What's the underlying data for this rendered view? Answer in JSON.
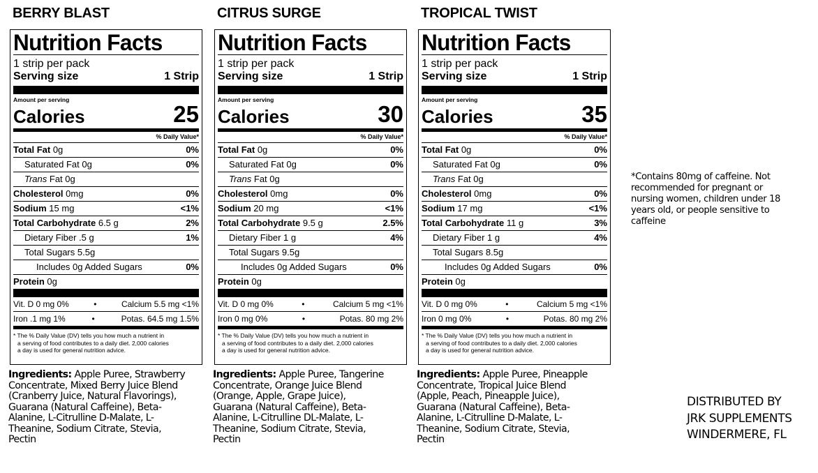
{
  "panels": [
    {
      "flavor": "BERRY BLAST",
      "title": "Nutrition Facts",
      "servings": "1 strip per pack",
      "serving_size_label": "Serving size",
      "serving_size": "1 Strip",
      "amount_per_serving": "Amount per serving",
      "calories_label": "Calories",
      "calories": "25",
      "dv_header": "% Daily Value*",
      "total_fat_label": "Total Fat",
      "total_fat_amt": "0g",
      "total_fat_pct": "0%",
      "sat_fat": "Saturated Fat 0g",
      "sat_fat_pct": "0%",
      "trans_fat_label": "Trans",
      "trans_fat_rest": "Fat 0g",
      "cholesterol_label": "Cholesterol",
      "cholesterol_amt": "0mg",
      "cholesterol_pct": "0%",
      "sodium_label": "Sodium",
      "sodium_amt": "15 mg",
      "sodium_pct": "<1%",
      "carb_label": "Total Carbohydrate",
      "carb_amt": "6.5 g",
      "carb_pct": "2%",
      "fiber": "Dietary Fiber .5 g",
      "fiber_pct": "1%",
      "sugars": "Total Sugars 5.5g",
      "added_sugars": "Includes 0g Added Sugars",
      "added_sugars_pct": "0%",
      "protein_label": "Protein",
      "protein_amt": "0g",
      "vitd": "Vit. D 0 mg 0%",
      "calcium": "Calcium 5.5 mg <1%",
      "iron": "Iron .1 mg 1%",
      "potas": "Potas. 64.5 mg 1.5%",
      "dot": "•",
      "footnote_1": "* The % Daily Value (DV) tells you how much a nutrient in",
      "footnote_2": "a serving of food contributes to a daily diet. 2,000 calories",
      "footnote_3": "a day is used for general nutrition advice.",
      "ingredients_head": "Ingredients:",
      "ingredients_lines": [
        "Apple Puree, Strawberry",
        "Concentrate, Mixed Berry Juice Blend",
        "(Cranberry Juice, Natural Flavorings),",
        "Guarana (Natural Caffeine), Beta-",
        "Alanine, L-Citrulline D-Malate, L-",
        "Theanine, Sodium Citrate, Stevia,",
        "Pectin"
      ]
    },
    {
      "flavor": "CITRUS SURGE",
      "title": "Nutrition Facts",
      "servings": "1 strip per pack",
      "serving_size_label": "Serving size",
      "serving_size": "1 Strip",
      "amount_per_serving": "Amount per serving",
      "calories_label": "Calories",
      "calories": "30",
      "dv_header": "% Daily Value*",
      "total_fat_label": "Total Fat",
      "total_fat_amt": "0g",
      "total_fat_pct": "0%",
      "sat_fat": "Saturated Fat 0g",
      "sat_fat_pct": "0%",
      "trans_fat_label": "Trans",
      "trans_fat_rest": "Fat 0g",
      "cholesterol_label": "Cholesterol",
      "cholesterol_amt": "0mg",
      "cholesterol_pct": "0%",
      "sodium_label": "Sodium",
      "sodium_amt": "20 mg",
      "sodium_pct": "<1%",
      "carb_label": "Total Carbohydrate",
      "carb_amt": "9.5 g",
      "carb_pct": "2.5%",
      "fiber": "Dietary Fiber 1 g",
      "fiber_pct": "4%",
      "sugars": "Total Sugars 9.5g",
      "added_sugars": "Includes 0g Added Sugars",
      "added_sugars_pct": "0%",
      "protein_label": "Protein",
      "protein_amt": "0g",
      "vitd": "Vit. D 0 mg 0%",
      "calcium": "Calcium 5 mg <1%",
      "iron": "Iron 0 mg 0%",
      "potas": "Potas. 80 mg 2%",
      "dot": "•",
      "footnote_1": "* The % Daily Value (DV) tells you how much a nutrient in",
      "footnote_2": "a serving of food contributes to a daily diet. 2,000 calories",
      "footnote_3": "a day is used for general nutrition advice.",
      "ingredients_head": "Ingredients:",
      "ingredients_lines": [
        "Apple Puree, Tangerine",
        "Concentrate, Orange Juice Blend",
        "(Orange, Apple, Grape Juice),",
        "Guarana (Natural Caffeine), Beta-",
        "Alanine, L-Citrulline DL-Malate, L-",
        "Theanine, Sodium Citrate, Stevia,",
        "Pectin"
      ]
    },
    {
      "flavor": "TROPICAL TWIST",
      "title": "Nutrition Facts",
      "servings": "1 strip per pack",
      "serving_size_label": "Serving size",
      "serving_size": "1 Strip",
      "amount_per_serving": "Amount per serving",
      "calories_label": "Calories",
      "calories": "35",
      "dv_header": "% Daily Value*",
      "total_fat_label": "Total Fat",
      "total_fat_amt": "0g",
      "total_fat_pct": "0%",
      "sat_fat": "Saturated Fat 0g",
      "sat_fat_pct": "0%",
      "trans_fat_label": "Trans",
      "trans_fat_rest": "Fat 0g",
      "cholesterol_label": "Cholesterol",
      "cholesterol_amt": "0mg",
      "cholesterol_pct": "0%",
      "sodium_label": "Sodium",
      "sodium_amt": "17 mg",
      "sodium_pct": "<1%",
      "carb_label": "Total Carbohydrate",
      "carb_amt": "11 g",
      "carb_pct": "3%",
      "fiber": "Dietary Fiber 1 g",
      "fiber_pct": "4%",
      "sugars": "Total Sugars 8.5g",
      "added_sugars": "Includes 0g Added Sugars",
      "added_sugars_pct": "0%",
      "protein_label": "Protein",
      "protein_amt": "0g",
      "vitd": "Vit. D 0 mg 0%",
      "calcium": "Calcium 5 mg <1%",
      "iron": "Iron 0 mg 0%",
      "potas": "Potas. 80 mg 2%",
      "dot": "•",
      "footnote_1": "* The % Daily Value (DV) tells you how much a nutrient in",
      "footnote_2": "a serving of food contributes to a daily diet. 2,000 calories",
      "footnote_3": "a day is used for general nutrition advice.",
      "ingredients_head": "Ingredients:",
      "ingredients_lines": [
        "Apple Puree, Pineapple",
        "Concentrate, Tropical Juice Blend",
        "(Apple, Peach, Pineapple Juice),",
        "Guarana (Natural Caffeine), Beta-",
        "Alanine, L-Citrulline D-Malate, L-",
        "Theanine, Sodium Citrate, Stevia,",
        "Pectin"
      ]
    }
  ],
  "caffeine_note_lines": [
    "*Contains 80mg of caffeine. Not",
    "recommended for pregnant or",
    "nursing women, children under 18",
    "years old, or people sensitive to",
    "caffeine"
  ],
  "distributor_lines": [
    "DISTRIBUTED BY",
    "JRK SUPPLEMENTS",
    "WINDERMERE, FL"
  ]
}
